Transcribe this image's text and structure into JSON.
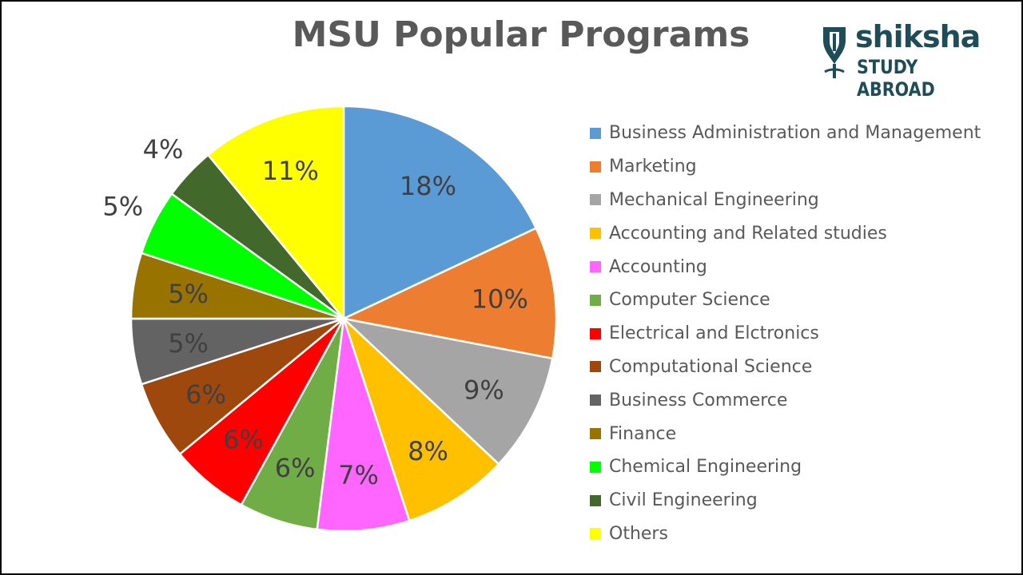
{
  "logo": {
    "word": "shiksha",
    "sub": "STUDY ABROAD",
    "color": "#1e4d57"
  },
  "chart_data": {
    "type": "pie",
    "title": "MSU Popular Programs",
    "legend_position": "right",
    "slices": [
      {
        "label": "Business Administration and Management",
        "value": 18,
        "display": "18%",
        "color": "#5b9bd5"
      },
      {
        "label": "Marketing",
        "value": 10,
        "display": "10%",
        "color": "#ed7d31"
      },
      {
        "label": "Mechanical Engineering",
        "value": 9,
        "display": "9%",
        "color": "#a5a5a5"
      },
      {
        "label": "Accounting and Related studies",
        "value": 8,
        "display": "8%",
        "color": "#ffc000"
      },
      {
        "label": "Accounting",
        "value": 7,
        "display": "7%",
        "color": "#ff66ff"
      },
      {
        "label": "Computer Science",
        "value": 6,
        "display": "6%",
        "color": "#70ad47"
      },
      {
        "label": "Electrical and Elctronics",
        "value": 6,
        "display": "6%",
        "color": "#ff0000"
      },
      {
        "label": "Computational Science",
        "value": 6,
        "display": "6%",
        "color": "#9e480e"
      },
      {
        "label": "Business Commerce",
        "value": 5,
        "display": "5%",
        "color": "#636363"
      },
      {
        "label": "Finance",
        "value": 5,
        "display": "5%",
        "color": "#997300"
      },
      {
        "label": "Chemical Engineering",
        "value": 5,
        "display": "5%",
        "color": "#00ff00"
      },
      {
        "label": "Civil Engineering",
        "value": 4,
        "display": "4%",
        "color": "#43682b"
      },
      {
        "label": "Others",
        "value": 11,
        "display": "11%",
        "color": "#ffff00"
      }
    ]
  }
}
